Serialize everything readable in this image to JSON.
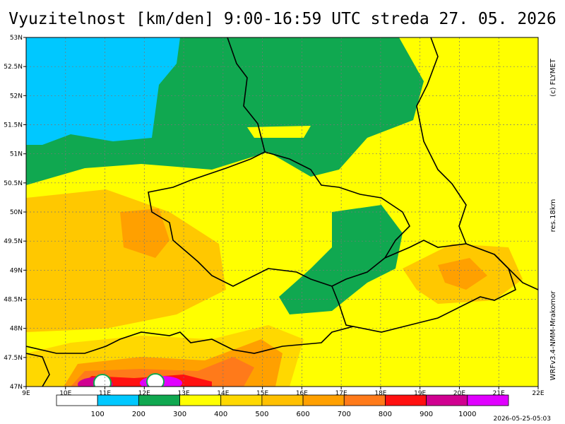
{
  "header": {
    "title": "Vyuzitelnost [km/den] 9:00-16:59 UTC  streda 27. 05. 2026"
  },
  "side_texts": {
    "copyright": "(c) FLYMET",
    "resolution": "res.18km",
    "model": "WRFv3.4-NMM-Mrakomor"
  },
  "axes": {
    "lat_labels": [
      "53N",
      "52.5N",
      "52N",
      "51.5N",
      "51N",
      "50.5N",
      "50N",
      "49.5N",
      "49N",
      "48.5N",
      "48N",
      "47.5N",
      "47N"
    ],
    "lon_labels": [
      "9E",
      "10E",
      "11E",
      "12E",
      "13E",
      "14E",
      "15E",
      "16E",
      "17E",
      "18E",
      "19E",
      "20E",
      "21E",
      "22E"
    ]
  },
  "legend": {
    "colors": [
      "#ffffff",
      "#00c8ff",
      "#10a850",
      "#ffff00",
      "#ffd800",
      "#ffc000",
      "#ffa000",
      "#ff7a1a",
      "#ff1010",
      "#d00090",
      "#e000ff"
    ],
    "labels": [
      "100",
      "200",
      "300",
      "400",
      "500",
      "600",
      "700",
      "800",
      "900",
      "1000"
    ]
  },
  "footer": {
    "run_time": "2026-05-25-05:03"
  }
}
